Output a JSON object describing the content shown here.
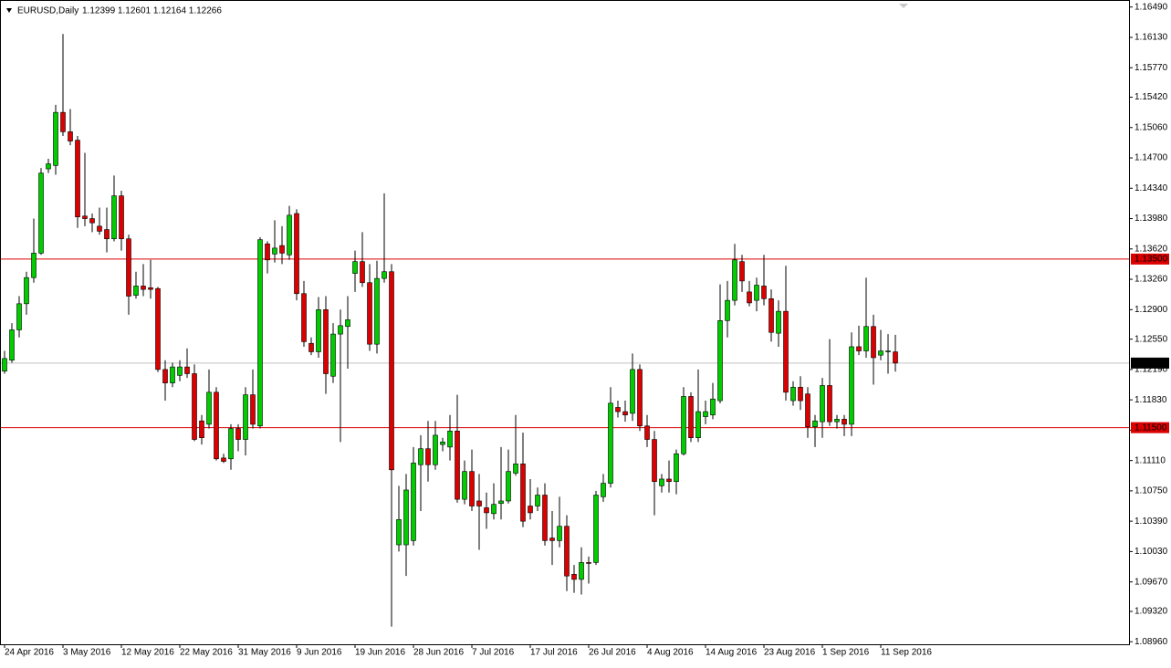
{
  "chart_data": {
    "type": "candlestick",
    "symbol": "EURUSD,Daily",
    "ohlc_text": "1.12399 1.12601 1.12164 1.12266",
    "up_color": "#00cc00",
    "down_color": "#dd0000",
    "wick_color": "#000000",
    "categories": [
      "24 Apr 2016",
      null,
      null,
      null,
      null,
      null,
      null,
      null,
      "3 May 2016",
      null,
      null,
      null,
      null,
      null,
      null,
      null,
      "12 May 2016",
      null,
      null,
      null,
      null,
      null,
      null,
      null,
      "22 May 2016",
      null,
      null,
      null,
      null,
      null,
      null,
      null,
      "31 May 2016",
      null,
      null,
      null,
      null,
      null,
      null,
      null,
      "9 Jun 2016",
      null,
      null,
      null,
      null,
      null,
      null,
      null,
      "19 Jun 2016",
      null,
      null,
      null,
      null,
      null,
      null,
      null,
      "28 Jun 2016",
      null,
      null,
      null,
      null,
      null,
      null,
      null,
      "7 Jul 2016",
      null,
      null,
      null,
      null,
      null,
      null,
      null,
      "17 Jul 2016",
      null,
      null,
      null,
      null,
      null,
      null,
      null,
      "26 Jul 2016",
      null,
      null,
      null,
      null,
      null,
      null,
      null,
      "4 Aug 2016",
      null,
      null,
      null,
      null,
      null,
      null,
      null,
      "14 Aug 2016",
      null,
      null,
      null,
      null,
      null,
      null,
      null,
      "23 Aug 2016",
      null,
      null,
      null,
      null,
      null,
      null,
      null,
      "1 Sep 2016",
      null,
      null,
      null,
      null,
      null,
      null,
      null,
      "11 Sep 2016",
      null,
      null
    ],
    "open": [
      1.1217,
      1.123,
      1.1266,
      1.1297,
      1.1328,
      1.1357,
      1.1457,
      1.1461,
      1.1524,
      1.1501,
      1.1491,
      1.1401,
      1.1398,
      1.1389,
      1.1385,
      1.1374,
      1.1425,
      1.1374,
      1.1307,
      1.1318,
      1.1316,
      1.1315,
      1.1219,
      1.1203,
      1.1212,
      1.1222,
      1.1214,
      1.1158,
      1.1154,
      1.1192,
      1.1114,
      1.1113,
      1.1149,
      1.1136,
      1.1189,
      1.1152,
      1.1368,
      1.1356,
      1.1366,
      1.1355,
      1.1404,
      1.1309,
      1.125,
      1.124,
      1.129,
      1.1211,
      1.1261,
      1.127,
      1.1333,
      1.1347,
      1.1322,
      1.1249,
      1.1327,
      1.1335,
      1.1011,
      1.1011,
      1.1016,
      1.1106,
      1.1125,
      1.1106,
      1.113,
      1.1127,
      1.1146,
      1.1065,
      1.1098,
      1.1063,
      1.1055,
      1.1048,
      1.106,
      1.1063,
      1.1096,
      1.1107,
      1.1057,
      1.1057,
      1.107,
      1.1019,
      1.1016,
      1.1033,
      1.0976,
      1.097,
      1.099,
      1.099,
      1.1068,
      1.1084,
      1.1174,
      1.1169,
      1.1167,
      1.1219,
      1.1152,
      1.1136,
      1.1081,
      1.1089,
      1.1086,
      1.1119,
      1.1187,
      1.1138,
      1.1163,
      1.1165,
      1.1182,
      1.1277,
      1.1301,
      1.1347,
      1.1311,
      1.1301,
      1.1318,
      1.1303,
      1.1262,
      1.1288,
      1.1182,
      1.1198,
      1.119,
      1.1151,
      1.1157,
      1.12,
      1.1157,
      1.116,
      1.1154,
      1.1246,
      1.1241,
      1.127,
      1.1236,
      1.124,
      1.12399
    ],
    "high": [
      1.1241,
      1.1274,
      1.1306,
      1.1335,
      1.1398,
      1.1458,
      1.1469,
      1.1533,
      1.1617,
      1.1528,
      1.1496,
      1.1476,
      1.1404,
      1.1411,
      1.1411,
      1.1449,
      1.1431,
      1.1379,
      1.1335,
      1.1344,
      1.1349,
      1.1317,
      1.123,
      1.1227,
      1.123,
      1.1244,
      1.1225,
      1.1165,
      1.1219,
      1.1198,
      1.1119,
      1.1154,
      1.1154,
      1.1198,
      1.1219,
      1.1376,
      1.1371,
      1.1396,
      1.1389,
      1.1413,
      1.1409,
      1.1324,
      1.1257,
      1.1305,
      1.1306,
      1.1274,
      1.129,
      1.1306,
      1.136,
      1.1382,
      1.1344,
      1.1348,
      1.1428,
      1.1344,
      1.1081,
      1.1095,
      1.1127,
      1.1141,
      1.1158,
      1.1158,
      1.1138,
      1.1165,
      1.1189,
      1.1111,
      1.1124,
      1.1095,
      1.1073,
      1.1084,
      1.1127,
      1.1124,
      1.1165,
      1.1144,
      1.1089,
      1.1079,
      1.1084,
      1.1051,
      1.1068,
      1.1046,
      1.0987,
      1.1008,
      1.0997,
      1.1075,
      1.1095,
      1.1198,
      1.1182,
      1.1182,
      1.1238,
      1.1225,
      1.1165,
      1.1146,
      1.1095,
      1.1111,
      1.1124,
      1.1198,
      1.1192,
      1.1219,
      1.1182,
      1.1203,
      1.132,
      1.1324,
      1.1368,
      1.1355,
      1.1324,
      1.1328,
      1.1355,
      1.1314,
      1.1301,
      1.1342,
      1.1205,
      1.1211,
      1.1198,
      1.1165,
      1.1209,
      1.1255,
      1.1165,
      1.1165,
      1.1263,
      1.1271,
      1.1328,
      1.1284,
      1.1266,
      1.1261,
      1.12601
    ],
    "low": [
      1.1214,
      1.1227,
      1.1257,
      1.1284,
      1.1322,
      1.1355,
      1.1452,
      1.145,
      1.1496,
      1.1485,
      1.1387,
      1.1389,
      1.1382,
      1.1379,
      1.1358,
      1.1371,
      1.136,
      1.1284,
      1.1303,
      1.1306,
      1.1303,
      1.1216,
      1.1182,
      1.1198,
      1.1205,
      1.1209,
      1.1134,
      1.113,
      1.1149,
      1.1111,
      1.1108,
      1.11,
      1.1122,
      1.1117,
      1.1149,
      1.1149,
      1.1333,
      1.1346,
      1.1344,
      1.1349,
      1.1301,
      1.1246,
      1.1236,
      1.1233,
      1.119,
      1.1203,
      1.1133,
      1.122,
      1.1311,
      1.1317,
      1.1241,
      1.1238,
      1.1322,
      1.0914,
      1.1003,
      1.0974,
      1.101,
      1.1051,
      1.1086,
      1.11,
      1.1122,
      1.1111,
      1.1061,
      1.1059,
      1.1051,
      1.1005,
      1.103,
      1.1041,
      1.1041,
      1.106,
      1.1093,
      1.1032,
      1.1041,
      1.1051,
      1.101,
      1.0987,
      1.1008,
      1.0956,
      1.0954,
      1.0952,
      1.0965,
      1.0987,
      1.1062,
      1.1079,
      1.1162,
      1.1157,
      1.1158,
      1.1146,
      1.1127,
      1.1046,
      1.1073,
      1.1073,
      1.1071,
      1.1117,
      1.1133,
      1.1133,
      1.1154,
      1.116,
      1.1179,
      1.1257,
      1.1295,
      1.1311,
      1.1294,
      1.1288,
      1.1295,
      1.1252,
      1.1246,
      1.1182,
      1.1176,
      1.1171,
      1.1138,
      1.1127,
      1.1138,
      1.1152,
      1.1149,
      1.114,
      1.114,
      1.1236,
      1.1233,
      1.1201,
      1.123,
      1.1214,
      1.12164
    ],
    "close": [
      1.1232,
      1.1266,
      1.1297,
      1.1328,
      1.1357,
      1.1452,
      1.1463,
      1.1524,
      1.1501,
      1.149,
      1.14,
      1.1398,
      1.1393,
      1.1383,
      1.1374,
      1.1425,
      1.1374,
      1.1306,
      1.1318,
      1.1314,
      1.1314,
      1.1219,
      1.1203,
      1.1222,
      1.1222,
      1.1214,
      1.1136,
      1.1138,
      1.1192,
      1.1113,
      1.111,
      1.1149,
      1.1136,
      1.1189,
      1.1154,
      1.1373,
      1.1349,
      1.1363,
      1.1357,
      1.1402,
      1.1309,
      1.1252,
      1.124,
      1.129,
      1.1214,
      1.1261,
      1.1271,
      1.1278,
      1.1347,
      1.1322,
      1.1249,
      1.1327,
      1.1335,
      1.11,
      1.1041,
      1.1076,
      1.1108,
      1.1125,
      1.1106,
      1.1141,
      1.1133,
      1.1146,
      1.1065,
      1.1098,
      1.1057,
      1.1057,
      1.1049,
      1.1059,
      1.1063,
      1.1098,
      1.1107,
      1.1039,
      1.1049,
      1.107,
      1.1016,
      1.1016,
      1.1033,
      1.0974,
      1.097,
      1.099,
      1.0989,
      1.107,
      1.1084,
      1.1179,
      1.1169,
      1.1165,
      1.1219,
      1.1152,
      1.1136,
      1.1086,
      1.1089,
      1.1086,
      1.1119,
      1.1187,
      1.1138,
      1.1169,
      1.1169,
      1.1184,
      1.1277,
      1.1301,
      1.1349,
      1.1324,
      1.1298,
      1.1319,
      1.1303,
      1.1263,
      1.1288,
      1.1192,
      1.1198,
      1.1182,
      1.1151,
      1.1158,
      1.12,
      1.1157,
      1.116,
      1.1154,
      1.1246,
      1.1241,
      1.127,
      1.1233,
      1.1241,
      1.1241,
      1.12266
    ],
    "ylim": [
      1.0893,
      1.1653
    ],
    "yticks": [
      {
        "value": 1.1649,
        "label": "1.16490"
      },
      {
        "value": 1.1613,
        "label": "1.16130"
      },
      {
        "value": 1.1577,
        "label": "1.15770"
      },
      {
        "value": 1.1542,
        "label": "1.15420"
      },
      {
        "value": 1.1506,
        "label": "1.15060"
      },
      {
        "value": 1.147,
        "label": "1.14700"
      },
      {
        "value": 1.1434,
        "label": "1.14340"
      },
      {
        "value": 1.1398,
        "label": "1.13980"
      },
      {
        "value": 1.1362,
        "label": "1.13620"
      },
      {
        "value": 1.1326,
        "label": "1.13260"
      },
      {
        "value": 1.129,
        "label": "1.12900"
      },
      {
        "value": 1.1255,
        "label": "1.12550"
      },
      {
        "value": 1.1219,
        "label": "1.12190"
      },
      {
        "value": 1.1183,
        "label": "1.11830"
      },
      {
        "value": 1.1147,
        "label": "1.11470"
      },
      {
        "value": 1.1111,
        "label": "1.11110"
      },
      {
        "value": 1.1075,
        "label": "1.10750"
      },
      {
        "value": 1.1039,
        "label": "1.10390"
      },
      {
        "value": 1.1003,
        "label": "1.10030"
      },
      {
        "value": 1.0967,
        "label": "1.09670"
      },
      {
        "value": 1.0932,
        "label": "1.09320"
      },
      {
        "value": 1.0896,
        "label": "1.08960"
      }
    ],
    "levels": [
      {
        "value": 1.135,
        "label": "1.13500",
        "color": "#dd0000"
      },
      {
        "value": 1.115,
        "label": "1.11500",
        "color": "#dd0000"
      }
    ],
    "last_price": {
      "value": 1.12266,
      "label": "1.12266",
      "color": "#c0c0c0"
    }
  }
}
